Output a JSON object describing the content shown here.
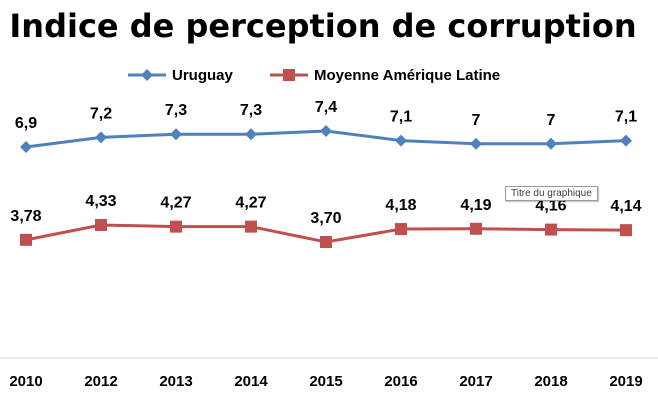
{
  "chart_data": {
    "type": "line",
    "title": "Indice de perception de corruption",
    "categories": [
      "2010",
      "2012",
      "2013",
      "2014",
      "2015",
      "2016",
      "2017",
      "2018",
      "2019"
    ],
    "series": [
      {
        "name": "Uruguay",
        "color": "#4f81bd",
        "marker": "diamond",
        "values": [
          6.9,
          7.2,
          7.3,
          7.3,
          7.4,
          7.1,
          7,
          7,
          7.1
        ],
        "labels": [
          "6,9",
          "7,2",
          "7,3",
          "7,3",
          "7,4",
          "7,1",
          "7",
          "7",
          "7,1"
        ]
      },
      {
        "name": "Moyenne Amérique Latine",
        "color": "#c0504d",
        "marker": "square",
        "values": [
          3.78,
          4.33,
          4.27,
          4.27,
          3.7,
          4.18,
          4.19,
          4.16,
          4.14
        ],
        "labels": [
          "3,78",
          "4,33",
          "4,27",
          "4,27",
          "3,70",
          "4,18",
          "4,19",
          "4,16",
          "4,14"
        ]
      }
    ],
    "legend_position": "top",
    "grid": false,
    "y_axis_visible": false
  },
  "tooltip": {
    "text": "Titre du graphique"
  }
}
